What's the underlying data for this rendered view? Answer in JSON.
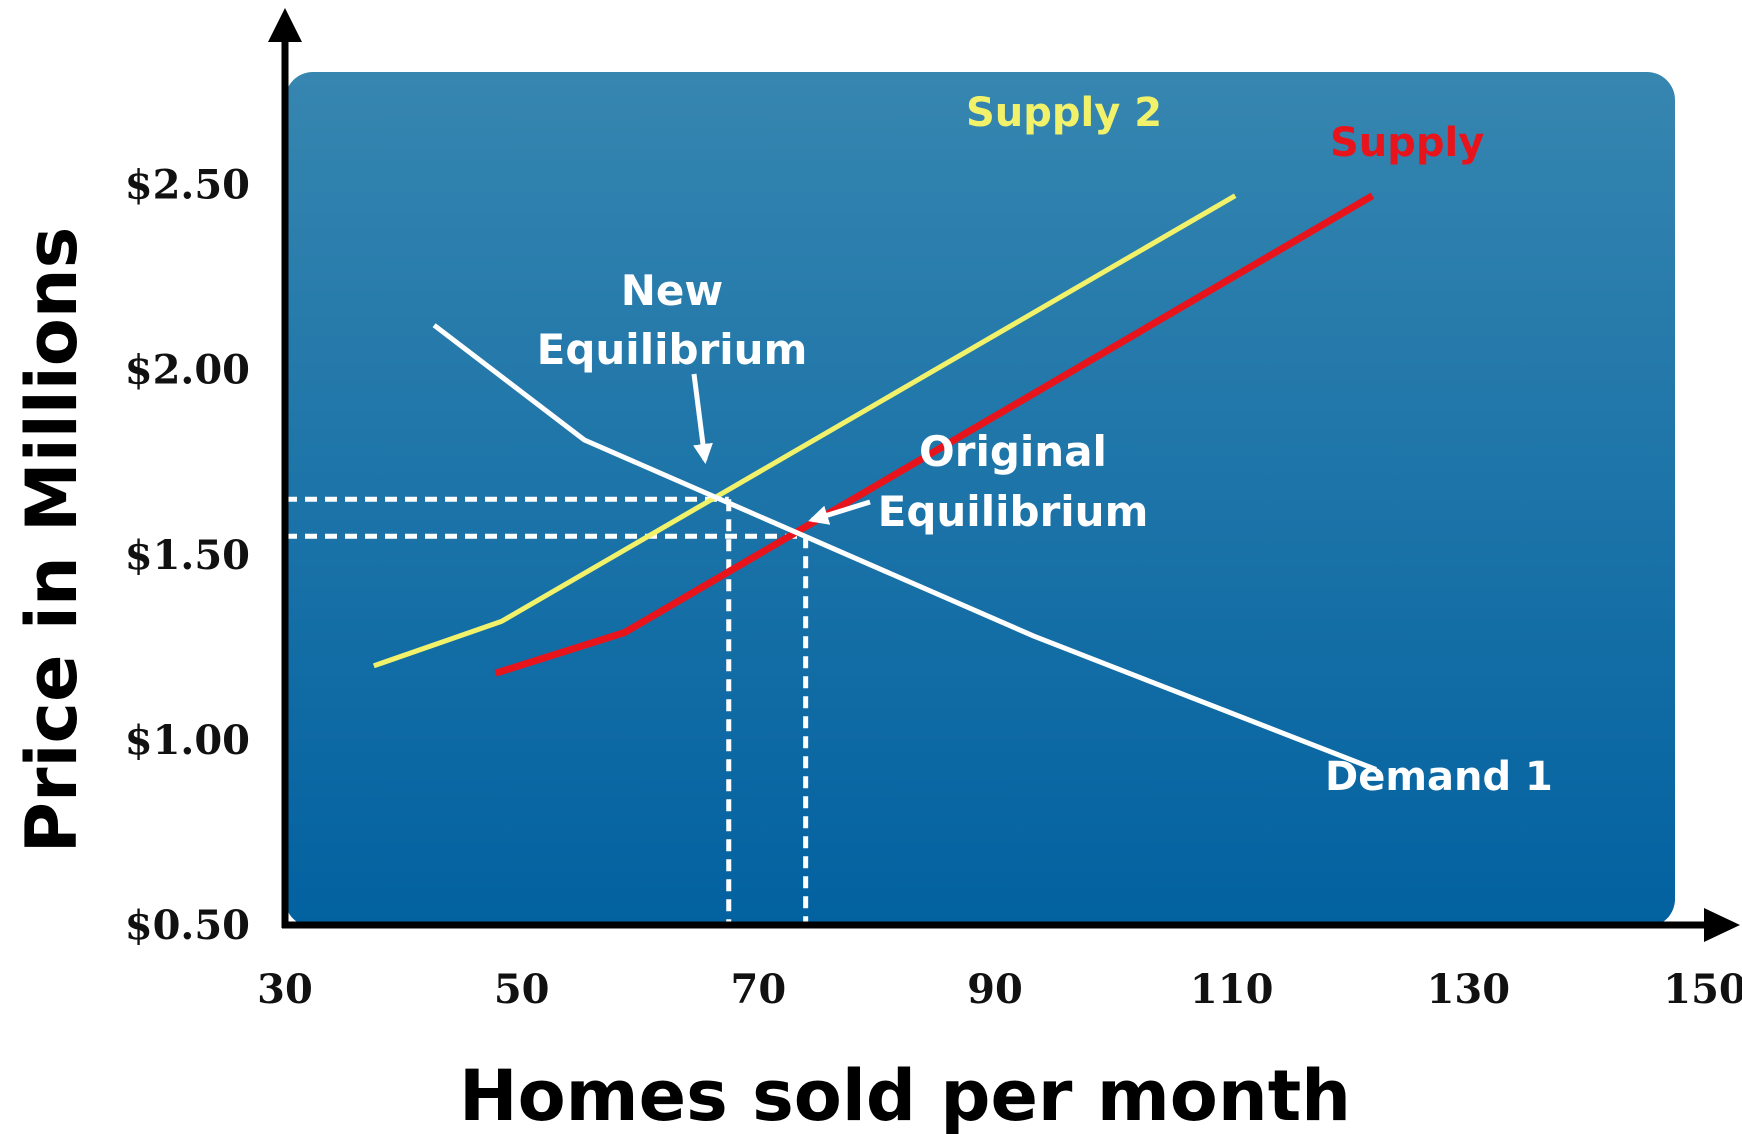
{
  "chart_data": {
    "type": "line",
    "title": "",
    "xlabel": "Homes sold per month",
    "ylabel": "Price in Millions",
    "xlim": [
      30,
      150
    ],
    "ylim": [
      0.5,
      2.75
    ],
    "x_ticks": [
      "30",
      "50",
      "70",
      "90",
      "110",
      "130",
      "150"
    ],
    "y_ticks": [
      "$0.50",
      "$1.00",
      "$1.50",
      "$2.00",
      "$2.50"
    ],
    "x_tick_values": [
      30,
      50,
      70,
      90,
      110,
      130,
      150
    ],
    "y_tick_values": [
      0.5,
      1.0,
      1.5,
      2.0,
      2.5
    ],
    "series": [
      {
        "name": "Supply 2",
        "color": "#F2F26A",
        "points": [
          [
            37.5,
            1.2
          ],
          [
            48.3,
            1.32
          ],
          [
            110.3,
            2.47
          ]
        ]
      },
      {
        "name": "Supply",
        "color": "#E8141B",
        "points": [
          [
            47.8,
            1.18
          ],
          [
            58.7,
            1.29
          ],
          [
            121.9,
            2.47
          ]
        ]
      },
      {
        "name": "Demand 1",
        "color": "#FFFFFF",
        "points": [
          [
            42.6,
            2.12
          ],
          [
            55.3,
            1.81
          ],
          [
            93.3,
            1.28
          ],
          [
            122.2,
            0.92
          ]
        ]
      }
    ],
    "equilibria": [
      {
        "label": "New Equilibrium",
        "x": 67.5,
        "y": 1.65
      },
      {
        "label": "Original Equilibrium",
        "x": 74.0,
        "y": 1.55
      }
    ],
    "annotations": [
      {
        "lines": [
          "New",
          "Equilibrium"
        ]
      },
      {
        "lines": [
          "Original",
          "Equilibrium"
        ]
      }
    ],
    "colors": {
      "plot_bg_top": "#3686B0",
      "plot_bg_bottom": "#0261A0",
      "axis": "#000000",
      "guide": "#FFFFFF"
    }
  }
}
